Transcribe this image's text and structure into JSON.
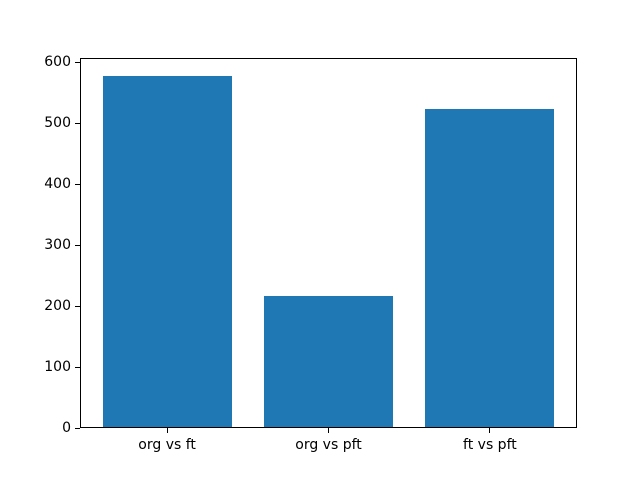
{
  "figure": {
    "background": "#ffffff",
    "spine_color": "#000000",
    "text_color": "#000000"
  },
  "chart_data": {
    "type": "bar",
    "title": "",
    "xlabel": "",
    "ylabel": "",
    "categories": [
      "org vs ft",
      "org vs pft",
      "ft vs pft"
    ],
    "values": [
      578,
      217,
      524
    ],
    "bar_color": "#1f77b4",
    "bar_width_fraction": 0.8,
    "ylim": [
      0,
      607
    ],
    "yticks": [
      0,
      100,
      200,
      300,
      400,
      500,
      600
    ],
    "grid": false,
    "legend": null
  }
}
